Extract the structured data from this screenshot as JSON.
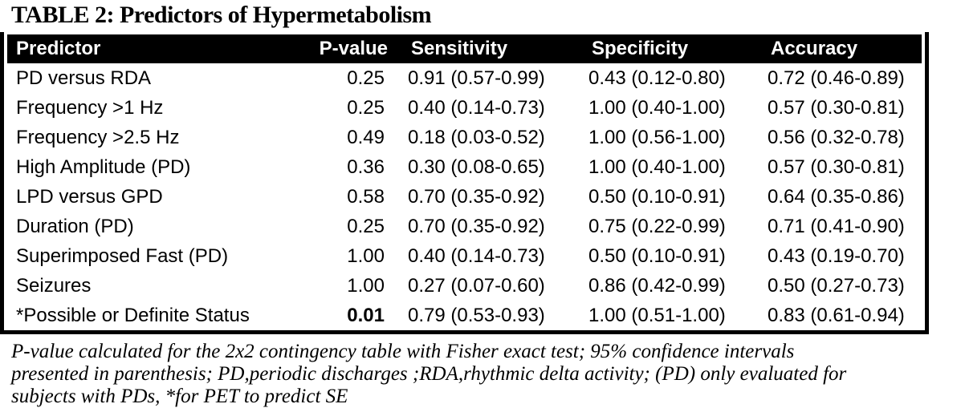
{
  "caption": {
    "text": "TABLE 2: Predictors of Hypermetabolism"
  },
  "colors": {
    "header_bg": "#000000",
    "header_text": "#ffffff",
    "body_text": "#000000",
    "table_border": "#000000"
  },
  "table": {
    "headers": [
      "Predictor",
      "P-value",
      "Sensitivity",
      "Specificity",
      "Accuracy"
    ],
    "rows": [
      {
        "predictor": "PD versus RDA",
        "p_value": "0.25",
        "p_value_bold": false,
        "sensitivity": "0.91 (0.57-0.99)",
        "specificity": "0.43 (0.12-0.80)",
        "accuracy": "0.72 (0.46-0.89)"
      },
      {
        "predictor": "Frequency >1 Hz",
        "p_value": "0.25",
        "p_value_bold": false,
        "sensitivity": "0.40 (0.14-0.73)",
        "specificity": "1.00 (0.40-1.00)",
        "accuracy": "0.57 (0.30-0.81)"
      },
      {
        "predictor": "Frequency >2.5 Hz",
        "p_value": "0.49",
        "p_value_bold": false,
        "sensitivity": "0.18 (0.03-0.52)",
        "specificity": "1.00 (0.56-1.00)",
        "accuracy": "0.56 (0.32-0.78)"
      },
      {
        "predictor": "High Amplitude (PD)",
        "p_value": "0.36",
        "p_value_bold": false,
        "sensitivity": "0.30 (0.08-0.65)",
        "specificity": "1.00 (0.40-1.00)",
        "accuracy": "0.57 (0.30-0.81)"
      },
      {
        "predictor": "LPD versus GPD",
        "p_value": "0.58",
        "p_value_bold": false,
        "sensitivity": "0.70 (0.35-0.92)",
        "specificity": "0.50 (0.10-0.91)",
        "accuracy": "0.64 (0.35-0.86)"
      },
      {
        "predictor": "Duration (PD)",
        "p_value": "0.25",
        "p_value_bold": false,
        "sensitivity": "0.70 (0.35-0.92)",
        "specificity": "0.75 (0.22-0.99)",
        "accuracy": "0.71 (0.41-0.90)"
      },
      {
        "predictor": "Superimposed Fast (PD)",
        "p_value": "1.00",
        "p_value_bold": false,
        "sensitivity": "0.40 (0.14-0.73)",
        "specificity": "0.50 (0.10-0.91)",
        "accuracy": "0.43 (0.19-0.70)"
      },
      {
        "predictor": "Seizures",
        "p_value": "1.00",
        "p_value_bold": false,
        "sensitivity": "0.27 (0.07-0.60)",
        "specificity": "0.86 (0.42-0.99)",
        "accuracy": "0.50 (0.27-0.73)"
      },
      {
        "predictor": "*Possible or Definite Status",
        "p_value": "0.01",
        "p_value_bold": true,
        "sensitivity": "0.79 (0.53-0.93)",
        "specificity": "1.00 (0.51-1.00)",
        "accuracy": "0.83 (0.61-0.94)"
      }
    ]
  },
  "footnote": {
    "lines": [
      "P-value calculated for the 2x2 contingency table with Fisher exact test; 95% confidence intervals",
      "presented in parenthesis; PD,periodic discharges ;RDA,rhythmic delta activity; (PD) only evaluated for",
      "subjects with PDs, *for PET to predict SE"
    ]
  }
}
